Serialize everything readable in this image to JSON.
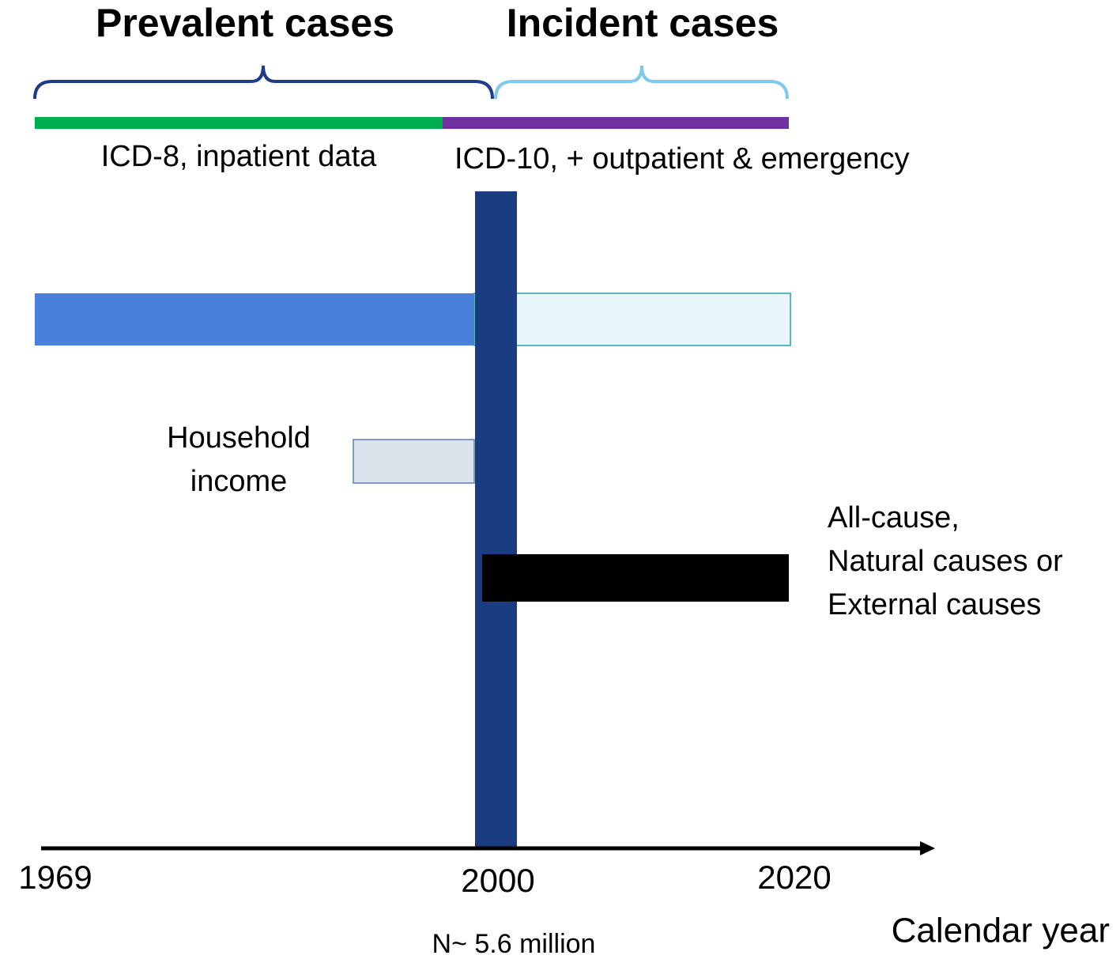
{
  "header": {
    "left_title": "Prevalent cases",
    "right_title": "Incident cases"
  },
  "periods": {
    "left": "ICD-8, inpatient data",
    "right": "ICD-10, + outpatient & emergency"
  },
  "exposure": {
    "lines": [
      "Household",
      "income"
    ]
  },
  "outcome": {
    "lines": [
      "All-cause,",
      "Natural causes or",
      "External causes"
    ]
  },
  "axis": {
    "years": [
      "1969",
      "2000",
      "2020"
    ],
    "label": "Calendar year"
  },
  "cohort": {
    "size": "N~ 5.6 million"
  }
}
